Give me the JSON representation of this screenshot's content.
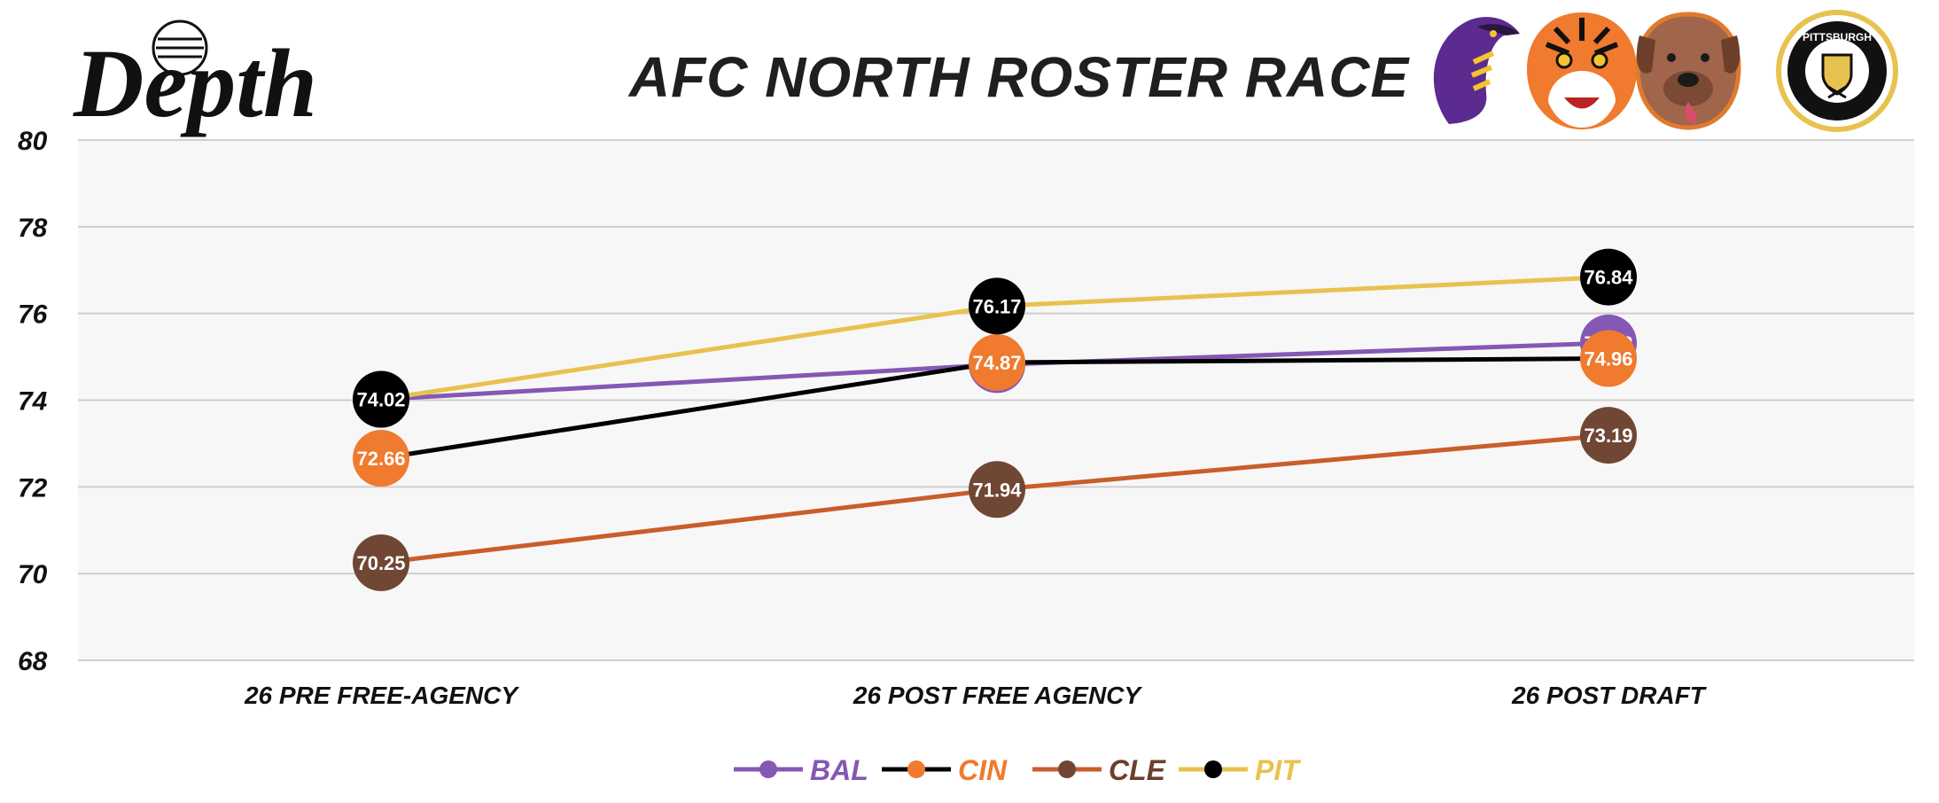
{
  "brand": {
    "name": "Depth"
  },
  "chart_data": {
    "type": "line",
    "title": "AFC NORTH ROSTER RACE",
    "xlabel": "",
    "ylabel": "",
    "categories": [
      "26 PRE FREE-AGENCY",
      "26 POST FREE AGENCY",
      "26 POST DRAFT"
    ],
    "ylim": [
      68,
      80
    ],
    "yticks": [
      68,
      70,
      72,
      74,
      76,
      78,
      80
    ],
    "grid": true,
    "legend_position": "bottom",
    "series": [
      {
        "name": "BAL",
        "values": [
          74.02,
          74.82,
          75.32
        ],
        "line_color": "#8458b3",
        "marker_color": "#8458b3",
        "label_color": "#8458b3"
      },
      {
        "name": "CIN",
        "values": [
          72.66,
          74.87,
          74.96
        ],
        "line_color": "#000000",
        "marker_color": "#f07a2e",
        "label_color": "#f07a2e"
      },
      {
        "name": "CLE",
        "values": [
          70.25,
          71.94,
          73.19
        ],
        "line_color": "#c95d2c",
        "marker_color": "#704634",
        "label_color": "#6b3f2c"
      },
      {
        "name": "PIT",
        "values": [
          74.02,
          76.17,
          76.84
        ],
        "line_color": "#e8c24e",
        "marker_color": "#000000",
        "label_color": "#e8c24e"
      }
    ],
    "data_labels": [
      [
        "74.02",
        "74.82",
        "75.32"
      ],
      [
        "72.66",
        "74.87",
        "74.96"
      ],
      [
        "70.25",
        "71.94",
        "73.19"
      ],
      [
        "74.02",
        "76.17",
        "76.84"
      ]
    ]
  },
  "team_logos": [
    {
      "icon": "raven-logo-icon"
    },
    {
      "icon": "tiger-logo-icon"
    },
    {
      "icon": "dog-logo-icon"
    },
    {
      "icon": "pittsburgh-logo-icon",
      "text": "PITTSBURGH"
    }
  ],
  "colors": {
    "plot_bg": "#f7f7f7",
    "grid": "#cfcfcf"
  }
}
